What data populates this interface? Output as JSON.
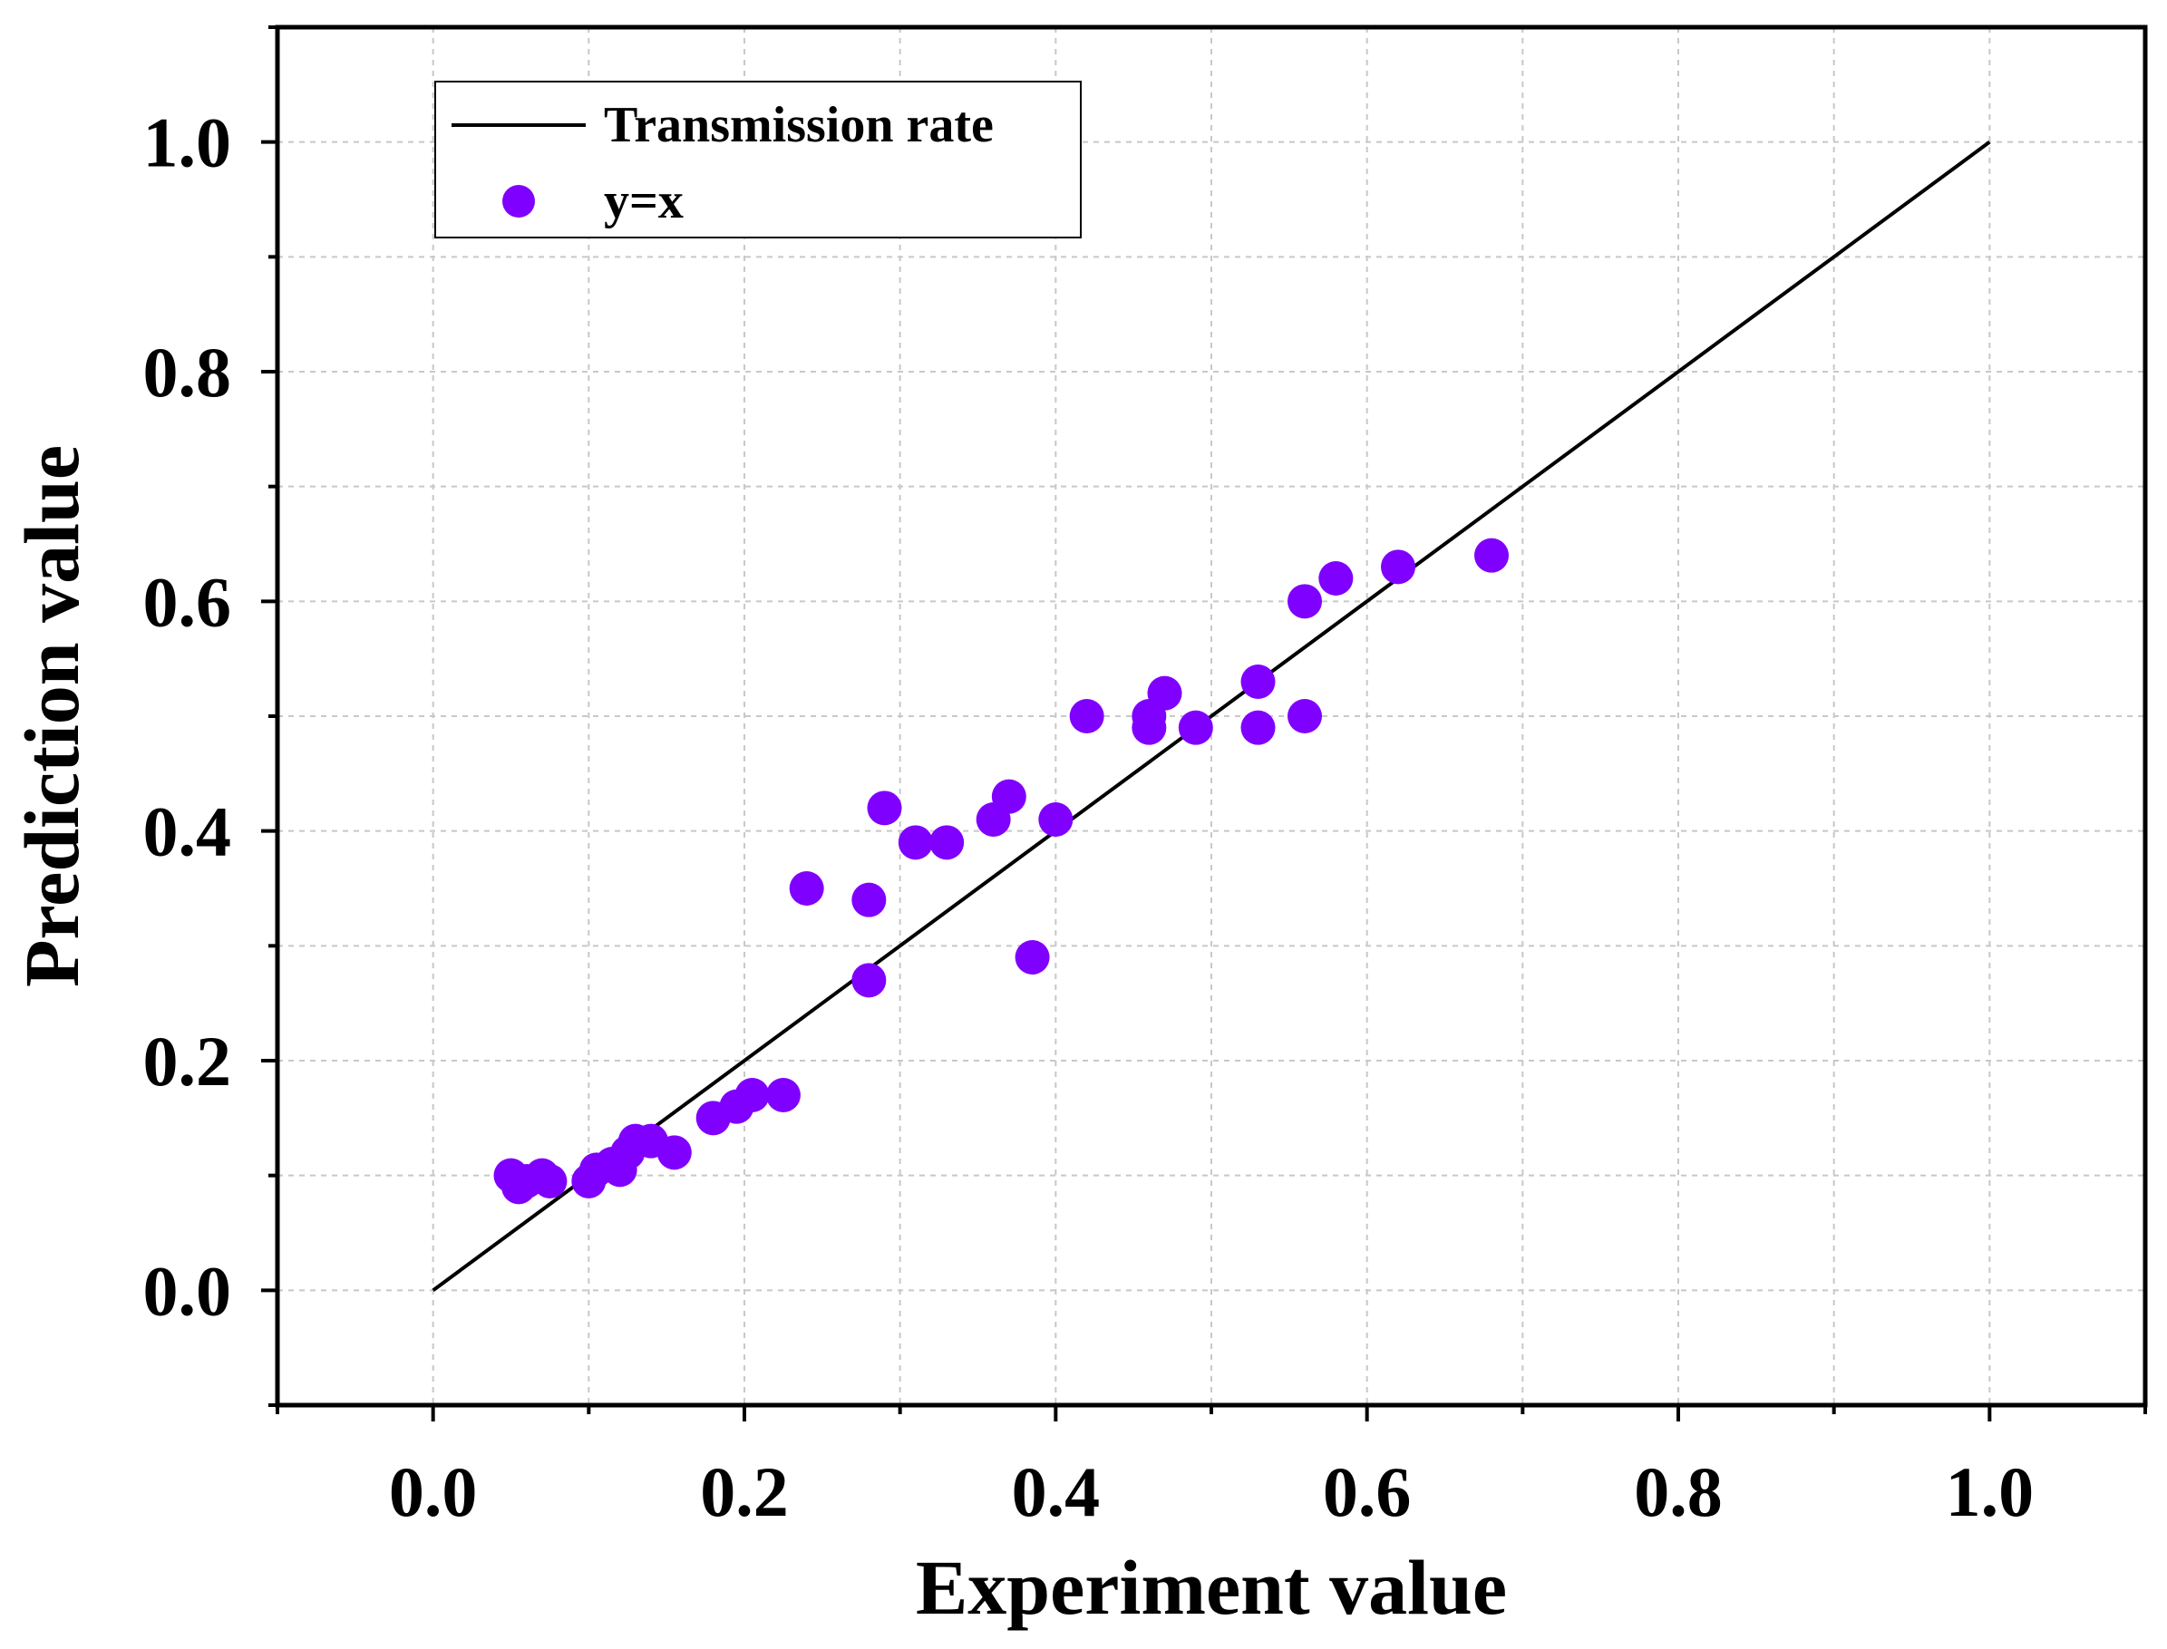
{
  "chart_data": {
    "type": "scatter",
    "title": "",
    "xlabel": "Experiment value",
    "ylabel": "Prediction value",
    "xlim": [
      -0.1,
      1.1
    ],
    "ylim": [
      -0.1,
      1.1
    ],
    "x_ticks": [
      "0.0",
      "0.2",
      "0.4",
      "0.6",
      "0.8",
      "1.0"
    ],
    "y_ticks": [
      "0.0",
      "0.2",
      "0.4",
      "0.6",
      "0.8",
      "1.0"
    ],
    "grid": true,
    "legend_position": "top-left",
    "series": [
      {
        "name": "Transmission rate",
        "kind": "line",
        "color": "#000000",
        "x": [
          0.0,
          1.0
        ],
        "y": [
          0.0,
          1.0
        ]
      },
      {
        "name": "y=x",
        "kind": "scatter",
        "color": "#8000ff",
        "points": [
          [
            0.05,
            0.1
          ],
          [
            0.055,
            0.09
          ],
          [
            0.06,
            0.095
          ],
          [
            0.07,
            0.1
          ],
          [
            0.075,
            0.095
          ],
          [
            0.1,
            0.095
          ],
          [
            0.105,
            0.105
          ],
          [
            0.115,
            0.11
          ],
          [
            0.12,
            0.105
          ],
          [
            0.125,
            0.12
          ],
          [
            0.13,
            0.13
          ],
          [
            0.14,
            0.13
          ],
          [
            0.155,
            0.12
          ],
          [
            0.18,
            0.15
          ],
          [
            0.195,
            0.16
          ],
          [
            0.205,
            0.17
          ],
          [
            0.225,
            0.17
          ],
          [
            0.24,
            0.35
          ],
          [
            0.28,
            0.34
          ],
          [
            0.28,
            0.27
          ],
          [
            0.29,
            0.42
          ],
          [
            0.31,
            0.39
          ],
          [
            0.33,
            0.39
          ],
          [
            0.36,
            0.41
          ],
          [
            0.37,
            0.43
          ],
          [
            0.385,
            0.29
          ],
          [
            0.4,
            0.41
          ],
          [
            0.42,
            0.5
          ],
          [
            0.46,
            0.5
          ],
          [
            0.46,
            0.49
          ],
          [
            0.47,
            0.52
          ],
          [
            0.49,
            0.49
          ],
          [
            0.53,
            0.53
          ],
          [
            0.53,
            0.49
          ],
          [
            0.56,
            0.6
          ],
          [
            0.56,
            0.5
          ],
          [
            0.58,
            0.62
          ],
          [
            0.62,
            0.63
          ],
          [
            0.68,
            0.64
          ]
        ]
      }
    ]
  }
}
